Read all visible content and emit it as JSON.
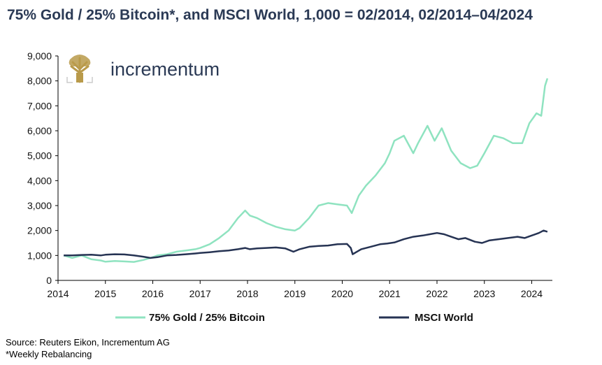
{
  "chart_data": {
    "type": "line",
    "title": "75% Gold / 25% Bitcoin*, and MSCI World, 1,000 = 02/2014, 02/2014–04/2024",
    "xlabel": "",
    "ylabel": "",
    "xlim": [
      2014,
      2024.35
    ],
    "ylim": [
      0,
      9000
    ],
    "y_ticks": [
      0,
      1000,
      2000,
      3000,
      4000,
      5000,
      6000,
      7000,
      8000,
      9000
    ],
    "y_tick_labels": [
      "0",
      "1,000",
      "2,000",
      "3,000",
      "4,000",
      "5,000",
      "6,000",
      "7,000",
      "8,000",
      "9,000"
    ],
    "x_ticks": [
      2014,
      2015,
      2016,
      2017,
      2018,
      2019,
      2020,
      2021,
      2022,
      2023,
      2024
    ],
    "x_tick_labels": [
      "2014",
      "2015",
      "2016",
      "2017",
      "2018",
      "2019",
      "2020",
      "2021",
      "2022",
      "2023",
      "2024"
    ],
    "grid": false,
    "legend_position": "bottom",
    "series": [
      {
        "name": "75% Gold / 25% Bitcoin",
        "color": "#8fe3c0",
        "x": [
          2014.12,
          2014.3,
          2014.5,
          2014.7,
          2014.9,
          2015.0,
          2015.2,
          2015.4,
          2015.6,
          2015.8,
          2015.95,
          2016.1,
          2016.3,
          2016.5,
          2016.7,
          2016.9,
          2017.0,
          2017.2,
          2017.4,
          2017.6,
          2017.8,
          2017.95,
          2018.05,
          2018.2,
          2018.4,
          2018.6,
          2018.8,
          2019.0,
          2019.1,
          2019.3,
          2019.5,
          2019.7,
          2019.9,
          2020.1,
          2020.2,
          2020.35,
          2020.5,
          2020.7,
          2020.9,
          2021.0,
          2021.1,
          2021.3,
          2021.5,
          2021.6,
          2021.8,
          2021.95,
          2022.1,
          2022.3,
          2022.5,
          2022.7,
          2022.85,
          2023.0,
          2023.2,
          2023.4,
          2023.6,
          2023.8,
          2023.95,
          2024.1,
          2024.2,
          2024.28,
          2024.33
        ],
        "values": [
          1000,
          900,
          1000,
          850,
          800,
          750,
          780,
          760,
          740,
          820,
          900,
          1000,
          1050,
          1150,
          1200,
          1250,
          1300,
          1450,
          1700,
          2000,
          2500,
          2800,
          2600,
          2500,
          2300,
          2150,
          2050,
          2000,
          2100,
          2500,
          3000,
          3100,
          3050,
          3000,
          2700,
          3400,
          3800,
          4200,
          4700,
          5100,
          5600,
          5800,
          5100,
          5500,
          6200,
          5600,
          6100,
          5200,
          4700,
          4500,
          4600,
          5100,
          5800,
          5700,
          5500,
          5500,
          6300,
          6700,
          6600,
          7800,
          8100
        ]
      },
      {
        "name": "MSCI World",
        "color": "#263353",
        "x": [
          2014.12,
          2014.3,
          2014.5,
          2014.7,
          2014.9,
          2015.0,
          2015.2,
          2015.4,
          2015.6,
          2015.8,
          2015.95,
          2016.1,
          2016.3,
          2016.5,
          2016.7,
          2016.9,
          2017.0,
          2017.2,
          2017.4,
          2017.6,
          2017.8,
          2017.95,
          2018.05,
          2018.2,
          2018.4,
          2018.6,
          2018.8,
          2018.97,
          2019.1,
          2019.3,
          2019.5,
          2019.7,
          2019.9,
          2020.1,
          2020.18,
          2020.22,
          2020.4,
          2020.6,
          2020.8,
          2020.95,
          2021.1,
          2021.3,
          2021.5,
          2021.7,
          2021.85,
          2022.0,
          2022.15,
          2022.3,
          2022.45,
          2022.6,
          2022.8,
          2022.95,
          2023.1,
          2023.3,
          2023.5,
          2023.7,
          2023.85,
          2024.0,
          2024.15,
          2024.25,
          2024.33
        ],
        "values": [
          1000,
          1000,
          1020,
          1030,
          1000,
          1030,
          1050,
          1040,
          1000,
          950,
          900,
          930,
          1000,
          1020,
          1050,
          1080,
          1100,
          1130,
          1170,
          1200,
          1250,
          1300,
          1250,
          1280,
          1300,
          1320,
          1280,
          1150,
          1250,
          1350,
          1380,
          1400,
          1450,
          1460,
          1300,
          1050,
          1250,
          1350,
          1450,
          1480,
          1520,
          1650,
          1750,
          1800,
          1850,
          1900,
          1850,
          1750,
          1650,
          1700,
          1550,
          1500,
          1600,
          1650,
          1700,
          1750,
          1700,
          1800,
          1900,
          2000,
          1950
        ]
      }
    ]
  },
  "logo": {
    "text": "incrementum"
  },
  "source": {
    "line1": "Source: Reuters Eikon, Incrementum AG",
    "line2": "*Weekly Rebalancing"
  }
}
